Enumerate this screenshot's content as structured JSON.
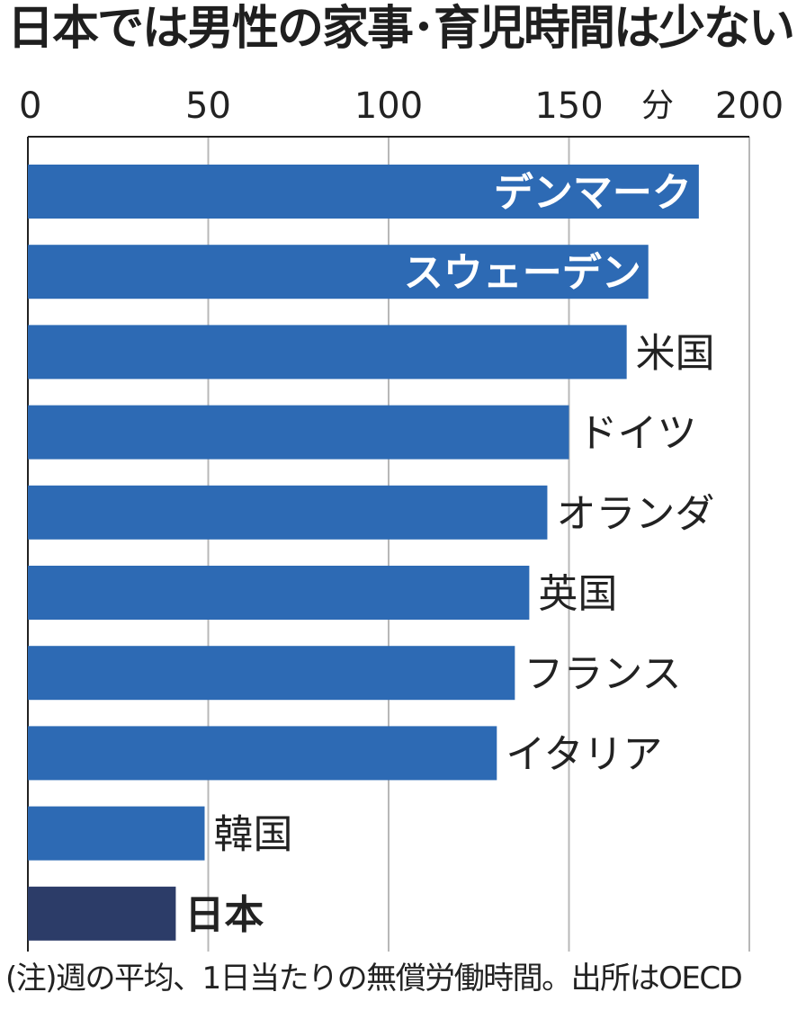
{
  "title": "日本では男性の家事･育児時間は少ない",
  "note": "(注)週の平均、1日当たりの無償労働時間。出所はOECD",
  "colors": {
    "bar": "#2d6ab4",
    "highlight": "#2c3c68",
    "grid": "#b8b8b8",
    "axis": "#222222"
  },
  "chart_data": {
    "type": "bar",
    "orientation": "horizontal",
    "title": "日本では男性の家事･育児時間は少ない",
    "unit": "分",
    "xlim": [
      0,
      200
    ],
    "ticks": [
      0,
      50,
      100,
      150,
      200
    ],
    "tick_labels": [
      "0",
      "50",
      "100",
      "150",
      "200"
    ],
    "categories": [
      "デンマーク",
      "スウェーデン",
      "米国",
      "ドイツ",
      "オランダ",
      "英国",
      "フランス",
      "イタリア",
      "韓国",
      "日本"
    ],
    "values": [
      186,
      172,
      166,
      150,
      144,
      139,
      135,
      130,
      49,
      41
    ],
    "label_inside": [
      true,
      true,
      false,
      false,
      false,
      false,
      false,
      false,
      false,
      false
    ],
    "highlight": "日本"
  }
}
